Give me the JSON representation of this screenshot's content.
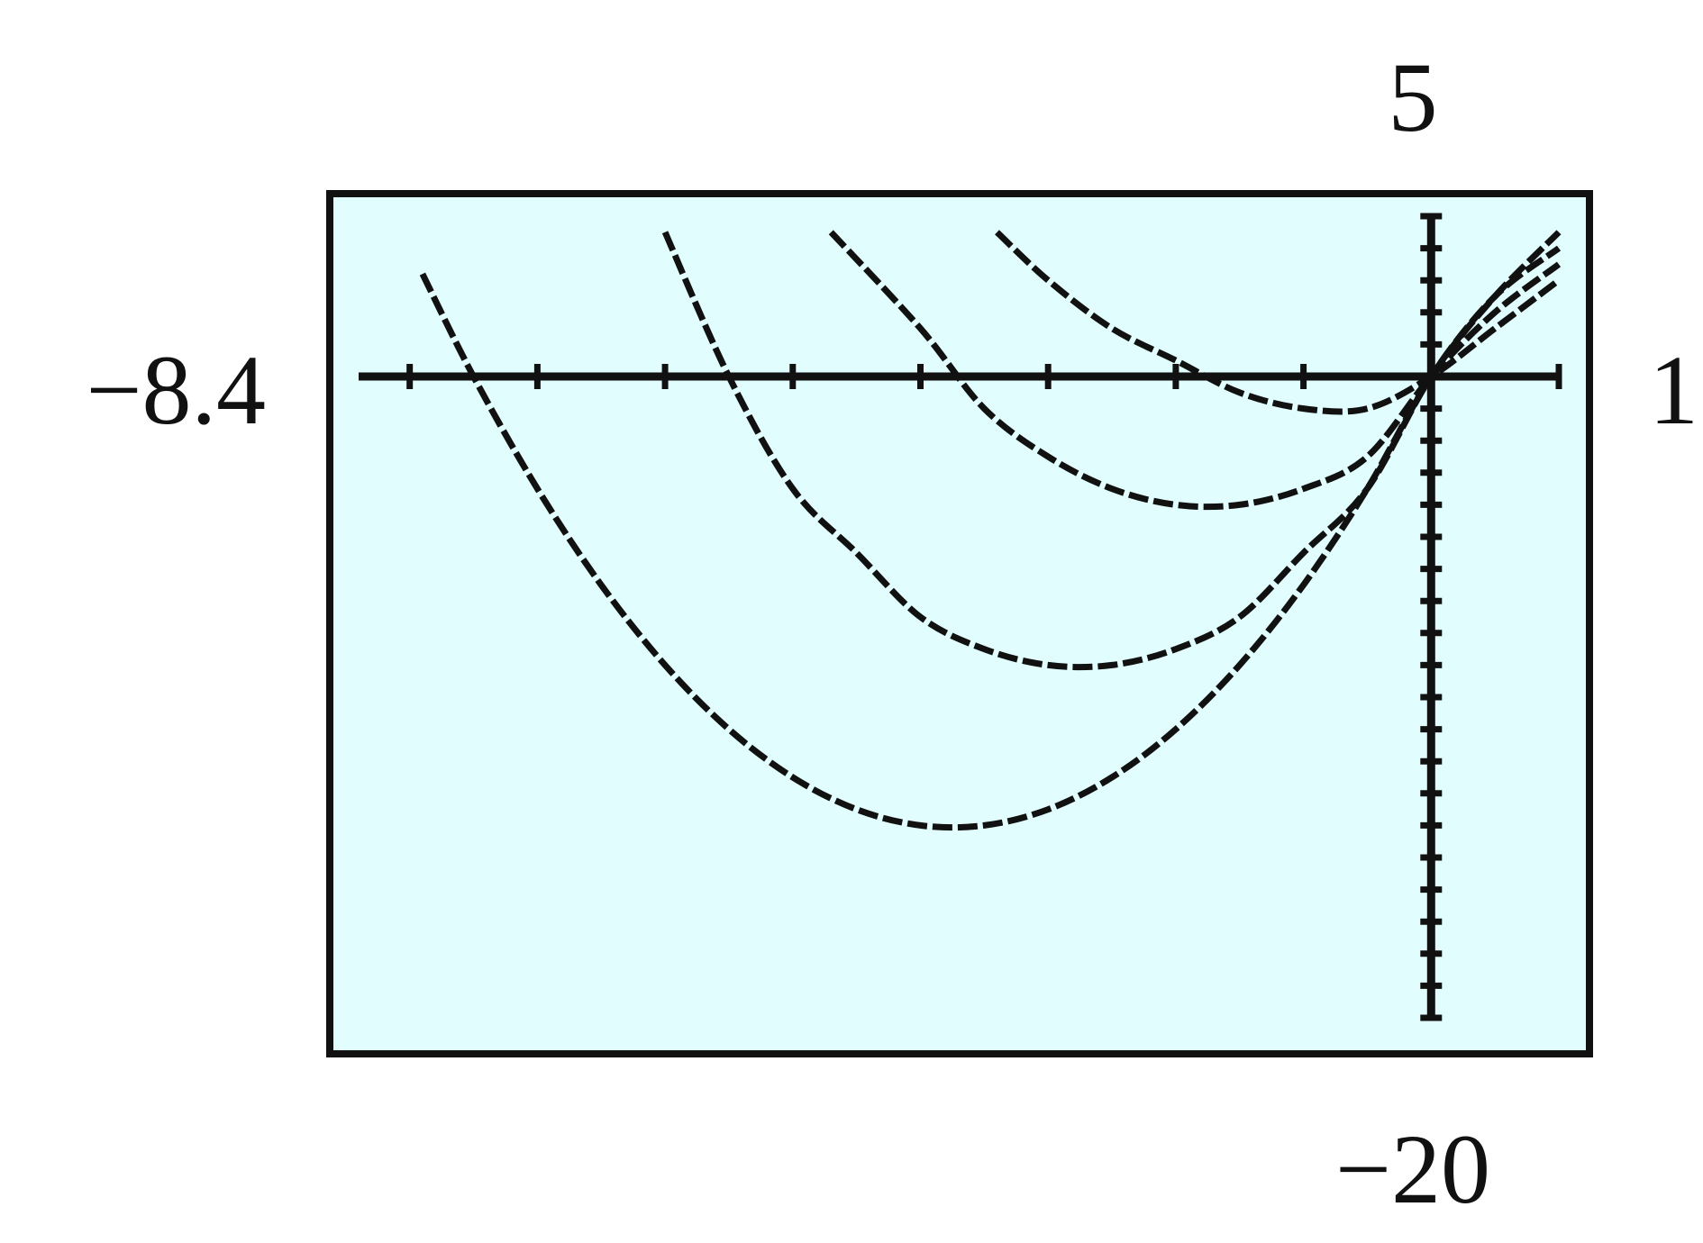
{
  "chart_data": {
    "type": "line",
    "title": "",
    "xlabel": "",
    "ylabel": "",
    "xlim": [
      -8.4,
      1
    ],
    "ylim": [
      -20,
      5
    ],
    "xscl": 1,
    "yscl": 1,
    "grid": false,
    "legend": "none",
    "window_labels": {
      "xmin": "−8.4",
      "xmax": "1",
      "ymin": "−20",
      "ymax": "5"
    },
    "series": [
      {
        "x": [
          -7.9,
          -7.5,
          -7.0,
          -6.5,
          -6.0,
          -5.5,
          -5.0,
          -4.5,
          -4.0,
          -3.5,
          -3.0,
          -2.5,
          -2.0,
          -1.5,
          -1.0,
          -0.5,
          0.0,
          0.5,
          1.0
        ],
        "values": [
          3.2,
          0.0,
          -3.5,
          -6.5,
          -9.0,
          -11.0,
          -12.5,
          -13.5,
          -14.0,
          -14.0,
          -13.5,
          -12.5,
          -11.0,
          -9.0,
          -6.5,
          -3.5,
          0.0,
          2.5,
          4.5
        ]
      },
      {
        "x": [
          -6.0,
          -5.5,
          -5.0,
          -4.5,
          -4.0,
          -3.5,
          -3.0,
          -2.5,
          -2.0,
          -1.5,
          -1.0,
          -0.5,
          0.0,
          0.5,
          1.0
        ],
        "values": [
          4.5,
          0.0,
          -3.5,
          -5.5,
          -7.5,
          -8.5,
          -9.0,
          -9.0,
          -8.5,
          -7.5,
          -5.5,
          -3.5,
          0.0,
          2.5,
          4.0
        ]
      },
      {
        "x": [
          -4.7,
          -4.0,
          -3.5,
          -3.0,
          -2.5,
          -2.0,
          -1.5,
          -1.0,
          -0.5,
          0.0,
          0.5,
          1.0
        ],
        "values": [
          4.5,
          1.5,
          -1.0,
          -2.5,
          -3.5,
          -4.0,
          -4.0,
          -3.5,
          -2.5,
          0.0,
          2.0,
          3.5
        ]
      },
      {
        "x": [
          -3.4,
          -3.0,
          -2.5,
          -2.0,
          -1.5,
          -1.0,
          -0.5,
          0.0,
          0.5,
          1.0
        ],
        "values": [
          4.5,
          3.0,
          1.5,
          0.5,
          -0.5,
          -1.0,
          -1.0,
          0.0,
          1.5,
          3.0
        ]
      }
    ]
  }
}
